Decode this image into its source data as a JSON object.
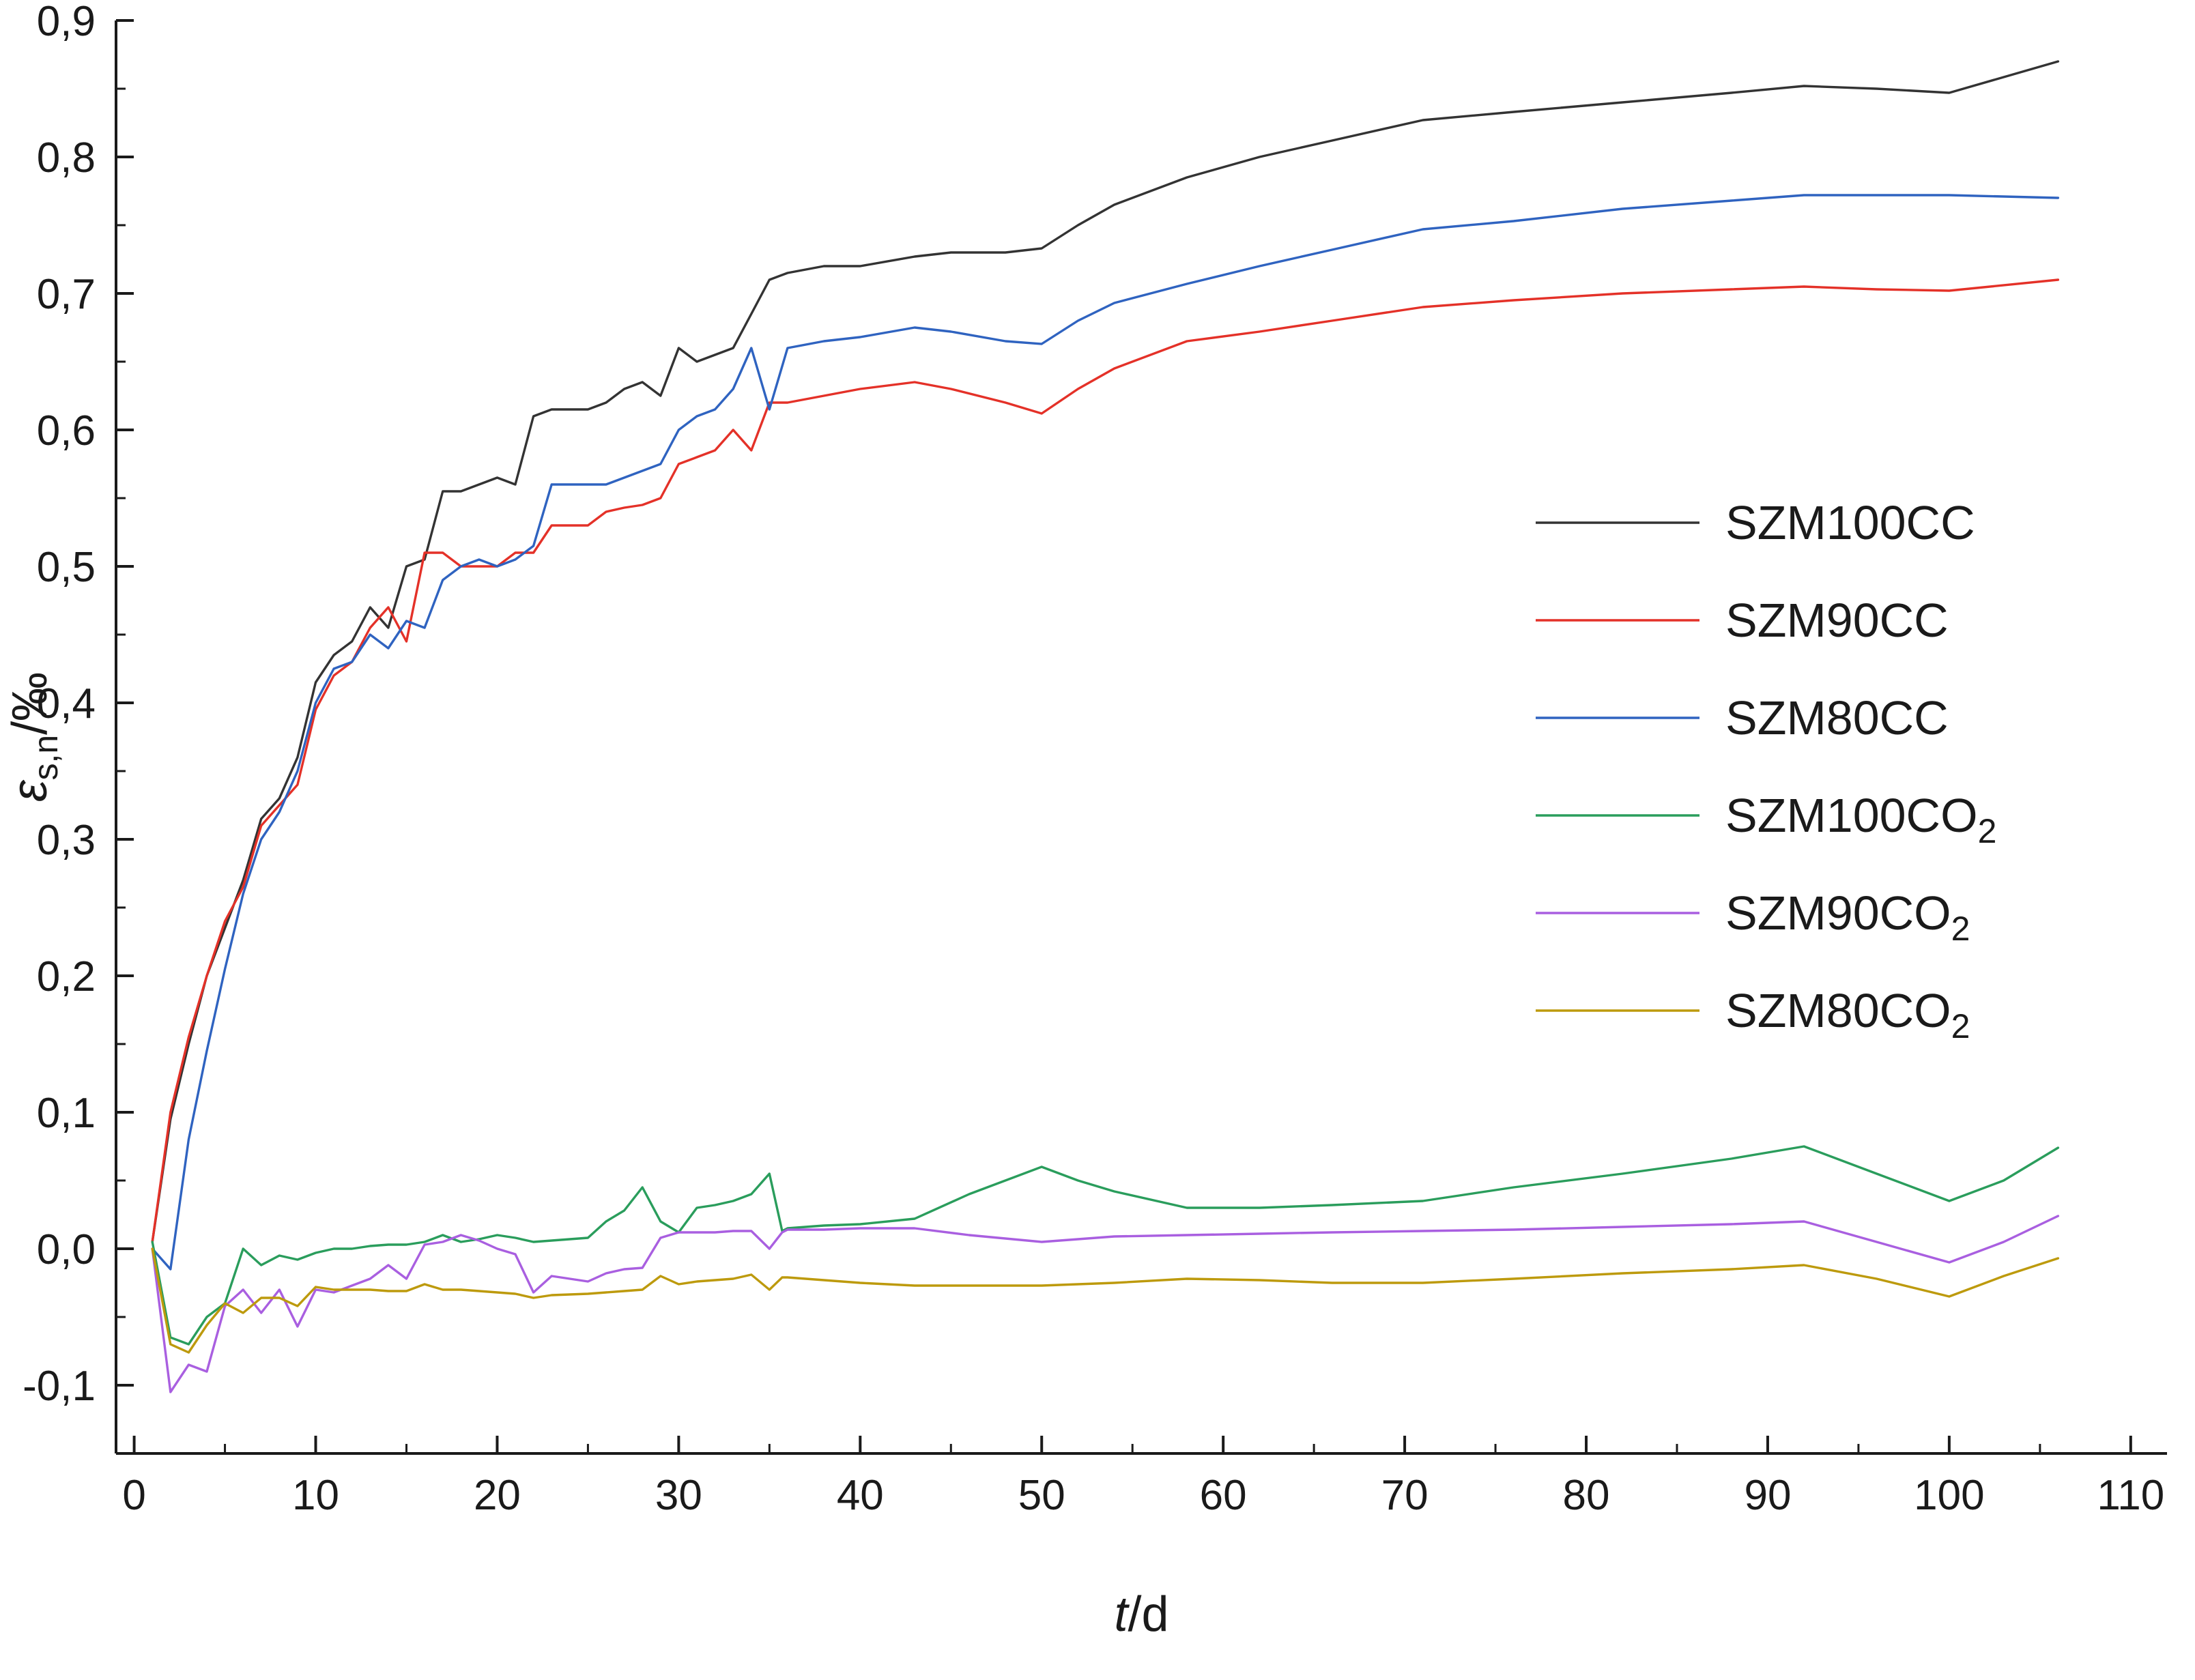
{
  "figure": {
    "background": "#ffffff",
    "axis_color": "#1a1a1a",
    "text_color": "#1a1a1a"
  },
  "chart_data": {
    "type": "line",
    "title": "",
    "x_axis": {
      "label_italic": "t",
      "label_rest": "/d",
      "range": [
        -1,
        112
      ],
      "tick_values": [
        0,
        10,
        20,
        30,
        40,
        50,
        60,
        70,
        80,
        90,
        100,
        110
      ],
      "tick_labels": [
        "0",
        "10",
        "20",
        "30",
        "40",
        "50",
        "60",
        "70",
        "80",
        "90",
        "100",
        "110"
      ],
      "minor_step": 5
    },
    "y_axis": {
      "label_symbol": "ε",
      "label_sub": "s,n",
      "label_rest": "/‰",
      "range": [
        -0.15,
        0.9
      ],
      "tick_values": [
        -0.1,
        0.0,
        0.1,
        0.2,
        0.3,
        0.4,
        0.5,
        0.6,
        0.7,
        0.8,
        0.9
      ],
      "tick_labels": [
        "-0,1",
        "0,0",
        "0,1",
        "0,2",
        "0,3",
        "0,4",
        "0,5",
        "0,6",
        "0,7",
        "0,8",
        "0,9"
      ],
      "minor_step": 0.05
    },
    "legend": {
      "position": "right-middle",
      "entries": [
        "SZM100CC",
        "SZM90CC",
        "SZM80CC",
        "SZM100CO2",
        "SZM90CO2",
        "SZM80CO2"
      ]
    },
    "series": [
      {
        "name": "SZM100CC",
        "label_main": "SZM100CC",
        "label_sub": "",
        "color": "#333333",
        "x": [
          1,
          2,
          3,
          4,
          5,
          6,
          7,
          8,
          9,
          10,
          11,
          12,
          13,
          14,
          15,
          16,
          17,
          18,
          19,
          20,
          21,
          22,
          23,
          25,
          26,
          27,
          28,
          29,
          30,
          31,
          32,
          33,
          34,
          35,
          36,
          38,
          40,
          43,
          45,
          48,
          50,
          52,
          54,
          58,
          62,
          66,
          71,
          76,
          82,
          88,
          92,
          96,
          100,
          106
        ],
        "y": [
          0.005,
          0.095,
          0.15,
          0.2,
          0.235,
          0.27,
          0.315,
          0.33,
          0.36,
          0.415,
          0.435,
          0.445,
          0.47,
          0.455,
          0.5,
          0.505,
          0.555,
          0.555,
          0.56,
          0.565,
          0.56,
          0.61,
          0.615,
          0.615,
          0.62,
          0.63,
          0.635,
          0.625,
          0.66,
          0.65,
          0.655,
          0.66,
          0.685,
          0.71,
          0.715,
          0.72,
          0.72,
          0.727,
          0.73,
          0.73,
          0.733,
          0.75,
          0.765,
          0.785,
          0.8,
          0.812,
          0.827,
          0.833,
          0.84,
          0.847,
          0.852,
          0.85,
          0.847,
          0.87
        ]
      },
      {
        "name": "SZM90CC",
        "label_main": "SZM90CC",
        "label_sub": "",
        "color": "#e43128",
        "x": [
          1,
          2,
          3,
          4,
          5,
          6,
          7,
          8,
          9,
          10,
          11,
          12,
          13,
          14,
          15,
          16,
          17,
          18,
          19,
          20,
          21,
          22,
          23,
          25,
          26,
          27,
          28,
          29,
          30,
          31,
          32,
          33,
          34,
          35,
          36,
          38,
          40,
          43,
          45,
          48,
          50,
          52,
          54,
          58,
          62,
          66,
          71,
          76,
          82,
          88,
          92,
          96,
          100,
          106
        ],
        "y": [
          0.005,
          0.1,
          0.155,
          0.2,
          0.24,
          0.265,
          0.31,
          0.325,
          0.34,
          0.395,
          0.42,
          0.43,
          0.455,
          0.47,
          0.445,
          0.51,
          0.51,
          0.5,
          0.5,
          0.5,
          0.51,
          0.51,
          0.53,
          0.53,
          0.54,
          0.543,
          0.545,
          0.55,
          0.575,
          0.58,
          0.585,
          0.6,
          0.585,
          0.62,
          0.62,
          0.625,
          0.63,
          0.635,
          0.63,
          0.62,
          0.612,
          0.63,
          0.645,
          0.665,
          0.672,
          0.68,
          0.69,
          0.695,
          0.7,
          0.703,
          0.705,
          0.703,
          0.702,
          0.71
        ]
      },
      {
        "name": "SZM80CC",
        "label_main": "SZM80CC",
        "label_sub": "",
        "color": "#2f63c0",
        "x": [
          1,
          2,
          3,
          4,
          5,
          6,
          7,
          8,
          9,
          10,
          11,
          12,
          13,
          14,
          15,
          16,
          17,
          18,
          19,
          20,
          21,
          22,
          23,
          25,
          26,
          27,
          28,
          29,
          30,
          31,
          32,
          33,
          34,
          35,
          36,
          38,
          40,
          43,
          45,
          48,
          50,
          52,
          54,
          58,
          62,
          66,
          71,
          76,
          82,
          88,
          92,
          96,
          100,
          106
        ],
        "y": [
          0.0,
          -0.015,
          0.08,
          0.145,
          0.205,
          0.26,
          0.3,
          0.32,
          0.35,
          0.4,
          0.425,
          0.43,
          0.45,
          0.44,
          0.46,
          0.455,
          0.49,
          0.5,
          0.505,
          0.5,
          0.505,
          0.515,
          0.56,
          0.56,
          0.56,
          0.565,
          0.57,
          0.575,
          0.6,
          0.61,
          0.615,
          0.63,
          0.66,
          0.615,
          0.66,
          0.665,
          0.668,
          0.675,
          0.672,
          0.665,
          0.663,
          0.68,
          0.693,
          0.707,
          0.72,
          0.732,
          0.747,
          0.753,
          0.762,
          0.768,
          0.772,
          0.772,
          0.772,
          0.77
        ]
      },
      {
        "name": "SZM100CO2",
        "label_main": "SZM100CO",
        "label_sub": "2",
        "color": "#2a9d5c",
        "x": [
          1,
          2,
          3,
          4,
          5,
          6,
          7,
          8,
          9,
          10,
          11,
          12,
          13,
          14,
          15,
          16,
          17,
          18,
          19,
          20,
          21,
          22,
          23,
          25,
          26,
          27,
          28,
          29,
          30,
          31,
          32,
          33,
          34,
          35,
          35.7,
          36,
          38,
          40,
          43,
          46,
          50,
          52,
          54,
          58,
          62,
          66,
          71,
          76,
          82,
          88,
          92,
          96,
          100,
          103,
          106
        ],
        "y": [
          0.005,
          -0.065,
          -0.07,
          -0.05,
          -0.04,
          0.0,
          -0.012,
          -0.005,
          -0.008,
          -0.003,
          0.0,
          0.0,
          0.002,
          0.003,
          0.003,
          0.005,
          0.01,
          0.005,
          0.007,
          0.01,
          0.008,
          0.005,
          0.006,
          0.008,
          0.02,
          0.028,
          0.045,
          0.02,
          0.012,
          0.03,
          0.032,
          0.035,
          0.04,
          0.055,
          0.013,
          0.015,
          0.017,
          0.018,
          0.022,
          0.04,
          0.06,
          0.05,
          0.042,
          0.03,
          0.03,
          0.032,
          0.035,
          0.045,
          0.055,
          0.066,
          0.075,
          0.055,
          0.035,
          0.05,
          0.074
        ]
      },
      {
        "name": "SZM90CO2",
        "label_main": "SZM90CO",
        "label_sub": "2",
        "color": "#a95fe0",
        "x": [
          1,
          2,
          3,
          4,
          5,
          6,
          7,
          8,
          9,
          10,
          11,
          12,
          13,
          14,
          15,
          16,
          17,
          18,
          19,
          20,
          21,
          22,
          23,
          25,
          26,
          27,
          28,
          29,
          30,
          31,
          32,
          33,
          34,
          35,
          35.7,
          36,
          38,
          40,
          43,
          46,
          50,
          52,
          54,
          58,
          62,
          66,
          71,
          76,
          82,
          88,
          92,
          96,
          100,
          103,
          106
        ],
        "y": [
          0.0,
          -0.105,
          -0.085,
          -0.09,
          -0.042,
          -0.03,
          -0.047,
          -0.03,
          -0.057,
          -0.03,
          -0.032,
          -0.027,
          -0.022,
          -0.012,
          -0.022,
          0.003,
          0.005,
          0.01,
          0.006,
          0.0,
          -0.004,
          -0.032,
          -0.02,
          -0.024,
          -0.018,
          -0.015,
          -0.014,
          0.008,
          0.012,
          0.012,
          0.012,
          0.013,
          0.013,
          0.0,
          0.012,
          0.014,
          0.014,
          0.015,
          0.015,
          0.01,
          0.005,
          0.007,
          0.009,
          0.01,
          0.011,
          0.012,
          0.013,
          0.014,
          0.016,
          0.018,
          0.02,
          0.005,
          -0.01,
          0.005,
          0.024
        ]
      },
      {
        "name": "SZM80CO2",
        "label_main": "SZM80CO",
        "label_sub": "2",
        "color": "#bd9a0d",
        "x": [
          1,
          2,
          3,
          4,
          5,
          6,
          7,
          8,
          9,
          10,
          11,
          12,
          13,
          14,
          15,
          16,
          17,
          18,
          19,
          20,
          21,
          22,
          23,
          25,
          26,
          27,
          28,
          29,
          30,
          31,
          32,
          33,
          34,
          35,
          35.7,
          36,
          38,
          40,
          43,
          46,
          50,
          52,
          54,
          58,
          62,
          66,
          71,
          76,
          82,
          88,
          92,
          96,
          100,
          103,
          106
        ],
        "y": [
          0.0,
          -0.07,
          -0.076,
          -0.056,
          -0.04,
          -0.047,
          -0.036,
          -0.036,
          -0.042,
          -0.028,
          -0.03,
          -0.03,
          -0.03,
          -0.031,
          -0.031,
          -0.026,
          -0.03,
          -0.03,
          -0.031,
          -0.032,
          -0.033,
          -0.036,
          -0.034,
          -0.033,
          -0.032,
          -0.031,
          -0.03,
          -0.02,
          -0.026,
          -0.024,
          -0.023,
          -0.022,
          -0.019,
          -0.03,
          -0.021,
          -0.021,
          -0.023,
          -0.025,
          -0.027,
          -0.027,
          -0.027,
          -0.026,
          -0.025,
          -0.022,
          -0.023,
          -0.025,
          -0.025,
          -0.022,
          -0.018,
          -0.015,
          -0.012,
          -0.022,
          -0.035,
          -0.02,
          -0.007
        ]
      }
    ]
  }
}
